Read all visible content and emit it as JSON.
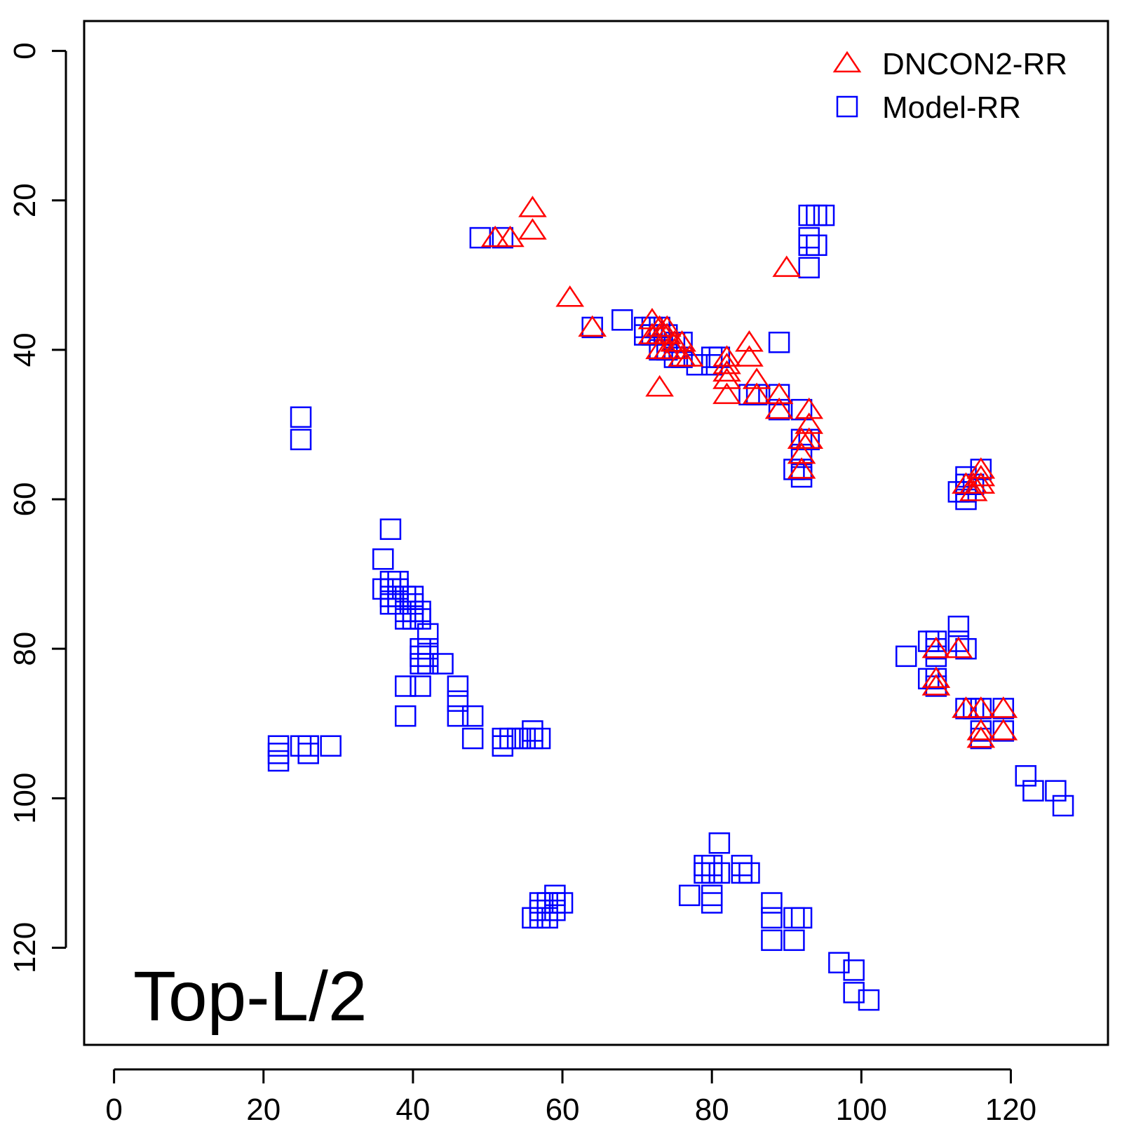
{
  "chart_data": {
    "type": "scatter",
    "title": "",
    "xlabel": "",
    "ylabel": "",
    "xlim": [
      -4,
      133
    ],
    "ylim": [
      -4,
      133
    ],
    "y_inverted": true,
    "x_ticks": [
      0,
      20,
      40,
      60,
      80,
      100,
      120
    ],
    "y_ticks": [
      0,
      20,
      40,
      60,
      80,
      100,
      120
    ],
    "grid": false,
    "legend_position": "top-right",
    "annotation": "Top-L/2",
    "series": [
      {
        "name": "DNCON2-RR",
        "marker": "triangle",
        "color": "#ff0000",
        "points": [
          [
            56,
            21
          ],
          [
            56,
            24
          ],
          [
            51,
            25
          ],
          [
            53,
            25
          ],
          [
            61,
            33
          ],
          [
            64,
            37
          ],
          [
            72,
            36
          ],
          [
            73,
            37
          ],
          [
            74,
            37
          ],
          [
            72,
            38
          ],
          [
            73,
            38
          ],
          [
            74,
            38
          ],
          [
            75,
            39
          ],
          [
            73,
            40
          ],
          [
            74,
            40
          ],
          [
            75,
            40
          ],
          [
            76,
            39
          ],
          [
            76,
            41
          ],
          [
            77,
            41
          ],
          [
            73,
            45
          ],
          [
            82,
            41
          ],
          [
            82,
            42
          ],
          [
            82,
            43
          ],
          [
            82,
            44
          ],
          [
            82,
            46
          ],
          [
            85,
            39
          ],
          [
            85,
            41
          ],
          [
            86,
            44
          ],
          [
            86,
            46
          ],
          [
            89,
            46
          ],
          [
            89,
            48
          ],
          [
            90,
            29
          ],
          [
            93,
            48
          ],
          [
            93,
            50
          ],
          [
            92,
            52
          ],
          [
            93,
            52
          ],
          [
            92,
            54
          ],
          [
            92,
            56
          ],
          [
            114,
            58
          ],
          [
            115,
            58
          ],
          [
            115,
            59
          ],
          [
            116,
            56
          ],
          [
            116,
            57
          ],
          [
            116,
            58
          ],
          [
            110,
            80
          ],
          [
            113,
            80
          ],
          [
            110,
            84
          ],
          [
            110,
            85
          ],
          [
            114,
            88
          ],
          [
            116,
            88
          ],
          [
            119,
            88
          ],
          [
            116,
            91
          ],
          [
            116,
            92
          ],
          [
            119,
            91
          ]
        ]
      },
      {
        "name": "Model-RR",
        "marker": "square",
        "color": "#0000ff",
        "points": [
          [
            49,
            25
          ],
          [
            52,
            25
          ],
          [
            93,
            22
          ],
          [
            94,
            22
          ],
          [
            95,
            22
          ],
          [
            93,
            25
          ],
          [
            93,
            26
          ],
          [
            94,
            26
          ],
          [
            93,
            29
          ],
          [
            64,
            37
          ],
          [
            68,
            36
          ],
          [
            71,
            37
          ],
          [
            72,
            37
          ],
          [
            73,
            37
          ],
          [
            71,
            38
          ],
          [
            72,
            38
          ],
          [
            73,
            38
          ],
          [
            74,
            38
          ],
          [
            73,
            40
          ],
          [
            74,
            40
          ],
          [
            75,
            41
          ],
          [
            76,
            41
          ],
          [
            75,
            39
          ],
          [
            76,
            39
          ],
          [
            78,
            42
          ],
          [
            80,
            41
          ],
          [
            81,
            41
          ],
          [
            80,
            42
          ],
          [
            85,
            46
          ],
          [
            86,
            46
          ],
          [
            89,
            39
          ],
          [
            89,
            46
          ],
          [
            89,
            48
          ],
          [
            92,
            48
          ],
          [
            92,
            52
          ],
          [
            93,
            52
          ],
          [
            92,
            54
          ],
          [
            92,
            56
          ],
          [
            91,
            56
          ],
          [
            92,
            57
          ],
          [
            25,
            49
          ],
          [
            25,
            52
          ],
          [
            114,
            57
          ],
          [
            115,
            58
          ],
          [
            116,
            56
          ],
          [
            114,
            58
          ],
          [
            113,
            59
          ],
          [
            114,
            59
          ],
          [
            114,
            60
          ],
          [
            37,
            64
          ],
          [
            36,
            68
          ],
          [
            36,
            72
          ],
          [
            37,
            71
          ],
          [
            38,
            71
          ],
          [
            37,
            72
          ],
          [
            38,
            72
          ],
          [
            37,
            73
          ],
          [
            38,
            73
          ],
          [
            39,
            73
          ],
          [
            40,
            73
          ],
          [
            37,
            74
          ],
          [
            38,
            74
          ],
          [
            39,
            74
          ],
          [
            40,
            74
          ],
          [
            39,
            75
          ],
          [
            40,
            75
          ],
          [
            41,
            75
          ],
          [
            39,
            76
          ],
          [
            40,
            76
          ],
          [
            41,
            76
          ],
          [
            42,
            78
          ],
          [
            41,
            80
          ],
          [
            42,
            80
          ],
          [
            41,
            81
          ],
          [
            42,
            81
          ],
          [
            41,
            82
          ],
          [
            42,
            82
          ],
          [
            44,
            82
          ],
          [
            39,
            85
          ],
          [
            41,
            85
          ],
          [
            46,
            85
          ],
          [
            46,
            87
          ],
          [
            39,
            89
          ],
          [
            46,
            89
          ],
          [
            48,
            89
          ],
          [
            48,
            92
          ],
          [
            52,
            92
          ],
          [
            53,
            92
          ],
          [
            52,
            93
          ],
          [
            54,
            92
          ],
          [
            55,
            92
          ],
          [
            56,
            91
          ],
          [
            56,
            92
          ],
          [
            57,
            92
          ],
          [
            22,
            93
          ],
          [
            22,
            94
          ],
          [
            22,
            95
          ],
          [
            25,
            93
          ],
          [
            26,
            93
          ],
          [
            26,
            94
          ],
          [
            29,
            93
          ],
          [
            109,
            79
          ],
          [
            110,
            79
          ],
          [
            110,
            80
          ],
          [
            110,
            81
          ],
          [
            113,
            77
          ],
          [
            113,
            79
          ],
          [
            114,
            80
          ],
          [
            106,
            81
          ],
          [
            109,
            84
          ],
          [
            110,
            84
          ],
          [
            110,
            85
          ],
          [
            114,
            88
          ],
          [
            115,
            88
          ],
          [
            116,
            88
          ],
          [
            119,
            88
          ],
          [
            116,
            91
          ],
          [
            116,
            92
          ],
          [
            119,
            91
          ],
          [
            122,
            97
          ],
          [
            123,
            99
          ],
          [
            126,
            99
          ],
          [
            127,
            101
          ],
          [
            81,
            106
          ],
          [
            79,
            109
          ],
          [
            80,
            109
          ],
          [
            79,
            110
          ],
          [
            80,
            110
          ],
          [
            81,
            110
          ],
          [
            84,
            109
          ],
          [
            84,
            110
          ],
          [
            85,
            110
          ],
          [
            77,
            113
          ],
          [
            80,
            113
          ],
          [
            80,
            114
          ],
          [
            88,
            114
          ],
          [
            88,
            116
          ],
          [
            91,
            116
          ],
          [
            92,
            116
          ],
          [
            88,
            119
          ],
          [
            91,
            119
          ],
          [
            97,
            122
          ],
          [
            99,
            123
          ],
          [
            99,
            126
          ],
          [
            101,
            127
          ],
          [
            56,
            116
          ],
          [
            57,
            116
          ],
          [
            58,
            116
          ],
          [
            57,
            115
          ],
          [
            58,
            115
          ],
          [
            59,
            115
          ],
          [
            57,
            114
          ],
          [
            58,
            114
          ],
          [
            59,
            114
          ],
          [
            60,
            114
          ],
          [
            59,
            113
          ]
        ]
      }
    ]
  }
}
